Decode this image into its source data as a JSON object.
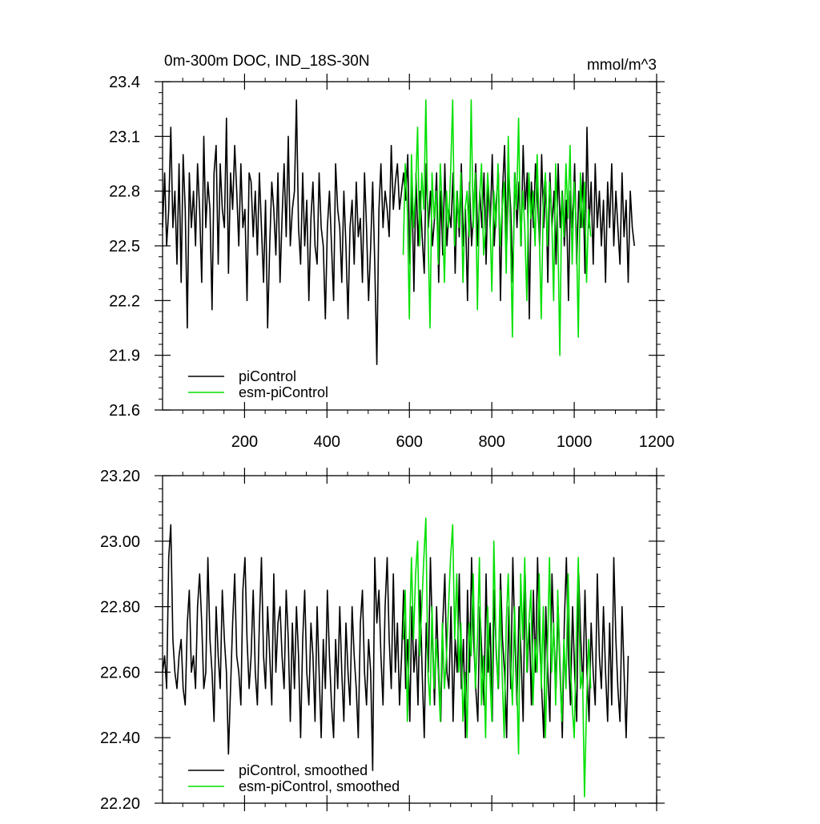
{
  "figure": {
    "title_left": "0m-300m DOC, IND_18S-30N",
    "title_right": "mmol/m^3"
  },
  "chart_data": [
    {
      "type": "line",
      "title": "0m-300m DOC, IND_18S-30N",
      "units": "mmol/m^3",
      "xlim": [
        1,
        1200
      ],
      "ylim": [
        21.6,
        23.4
      ],
      "x_ticks": [
        200,
        400,
        600,
        800,
        1000,
        1200
      ],
      "x_tick_labels": [
        "200",
        "400",
        "600",
        "800",
        "1000",
        "1200"
      ],
      "y_ticks": [
        21.6,
        21.9,
        22.2,
        22.5,
        22.8,
        23.1,
        23.4
      ],
      "y_tick_labels": [
        "21.6",
        "21.9",
        "22.2",
        "22.5",
        "22.8",
        "23.1",
        "23.4"
      ],
      "legend_position": "bottom-left",
      "series": [
        {
          "name": "piControl",
          "color": "#000000",
          "x_start": 1,
          "x_step": 5,
          "values": [
            22.6,
            22.9,
            22.5,
            22.7,
            23.15,
            22.6,
            22.8,
            22.4,
            22.95,
            22.3,
            23.0,
            22.7,
            22.05,
            22.9,
            22.6,
            22.8,
            22.5,
            22.95,
            22.7,
            22.3,
            23.1,
            22.6,
            22.85,
            22.7,
            22.15,
            22.9,
            23.05,
            22.4,
            22.95,
            22.7,
            22.6,
            23.2,
            22.35,
            22.9,
            22.7,
            23.05,
            22.8,
            22.5,
            22.95,
            22.6,
            22.7,
            22.2,
            22.9,
            22.85,
            22.55,
            22.8,
            22.45,
            22.9,
            22.6,
            22.3,
            22.75,
            22.05,
            22.5,
            22.85,
            22.7,
            22.45,
            22.9,
            22.3,
            22.65,
            22.95,
            22.55,
            23.1,
            22.5,
            22.7,
            22.8,
            23.3,
            22.6,
            22.4,
            22.9,
            22.5,
            22.75,
            22.2,
            22.65,
            22.85,
            22.5,
            22.4,
            22.9,
            22.6,
            22.5,
            22.1,
            22.6,
            22.8,
            22.5,
            22.2,
            22.95,
            22.7,
            22.6,
            22.3,
            22.8,
            22.5,
            22.1,
            22.6,
            22.75,
            22.4,
            22.85,
            22.55,
            22.65,
            22.3,
            22.9,
            22.6,
            22.2,
            22.5,
            22.85,
            22.4,
            21.85,
            22.7,
            22.95,
            22.6,
            22.8,
            22.7,
            22.55,
            23.05,
            22.7,
            22.85,
            22.95,
            22.7,
            22.8,
            22.9,
            22.75,
            23.0,
            22.4,
            22.85,
            22.25,
            22.9,
            22.5,
            22.8,
            22.55,
            22.35,
            22.95,
            22.6,
            22.8,
            22.5,
            22.65,
            22.9,
            22.3,
            22.8,
            22.45,
            22.95,
            22.5,
            22.7,
            22.6,
            22.9,
            22.35,
            22.8,
            22.55,
            22.95,
            22.5,
            22.7,
            22.2,
            22.85,
            22.5,
            22.7,
            22.95,
            22.5,
            22.8,
            22.6,
            22.9,
            22.4,
            22.85,
            22.6,
            23.0,
            22.5,
            22.75,
            22.9,
            22.2,
            22.8,
            23.05,
            22.5,
            22.9,
            22.7,
            22.3,
            22.9,
            22.6,
            22.85,
            22.5,
            23.05,
            22.7,
            22.9,
            22.1,
            22.85,
            22.6,
            22.95,
            22.75,
            22.5,
            23.0,
            22.6,
            22.85,
            22.3,
            22.9,
            22.6,
            22.8,
            22.4,
            22.95,
            22.6,
            22.8,
            22.5,
            22.75,
            22.2,
            22.8,
            22.6,
            22.95,
            22.4,
            22.8,
            22.6,
            22.9,
            22.35,
            23.15,
            22.6,
            22.85,
            22.4,
            22.95,
            22.6,
            22.8,
            22.5,
            22.75,
            22.3,
            22.85,
            22.6,
            22.95,
            22.5,
            22.8,
            22.6,
            22.4,
            22.9,
            22.55,
            22.75,
            22.3,
            22.8,
            22.6,
            22.5
          ]
        },
        {
          "name": "esm-piControl",
          "color": "#00e000",
          "x_start": 585,
          "x_step": 5,
          "values": [
            22.45,
            22.95,
            22.7,
            22.1,
            23.0,
            22.6,
            22.8,
            23.15,
            22.5,
            22.9,
            22.7,
            23.3,
            22.6,
            22.05,
            22.9,
            22.65,
            22.8,
            22.4,
            22.95,
            22.7,
            22.3,
            22.8,
            22.6,
            22.9,
            23.3,
            22.5,
            22.8,
            22.6,
            22.9,
            22.3,
            22.7,
            22.8,
            22.55,
            23.3,
            22.6,
            22.9,
            22.15,
            22.75,
            22.95,
            22.45,
            22.6,
            22.9,
            22.7,
            22.25,
            22.8,
            22.6,
            22.95,
            22.5,
            22.7,
            22.85,
            22.35,
            23.1,
            22.6,
            22.0,
            22.9,
            22.7,
            23.2,
            22.5,
            22.8,
            22.6,
            22.2,
            22.9,
            22.65,
            22.8,
            22.5,
            23.0,
            22.6,
            22.1,
            22.75,
            22.9,
            22.5,
            22.85,
            22.7,
            22.2,
            22.95,
            22.6,
            21.9,
            22.8,
            22.55,
            22.95,
            22.65,
            23.05,
            22.4,
            22.85,
            22.6,
            22.0,
            22.9,
            22.6,
            22.85,
            22.3,
            22.7,
            22.55
          ]
        }
      ]
    },
    {
      "type": "line",
      "xlim": [
        1,
        1200
      ],
      "ylim": [
        22.2,
        23.2
      ],
      "y_ticks": [
        22.2,
        22.4,
        22.6,
        22.8,
        23.0,
        23.2
      ],
      "y_tick_labels": [
        "22.20",
        "22.40",
        "22.60",
        "22.80",
        "23.00",
        "23.20"
      ],
      "x_ticks": [
        200,
        400,
        600,
        800,
        1000,
        1200
      ],
      "legend_position": "bottom-left",
      "series": [
        {
          "name": "piControl, smoothed",
          "color": "#000000",
          "x_start": 1,
          "x_step": 5,
          "values": [
            22.6,
            22.65,
            22.55,
            22.95,
            23.05,
            22.7,
            22.6,
            22.55,
            22.65,
            22.7,
            22.55,
            22.5,
            22.75,
            22.85,
            22.6,
            22.65,
            22.55,
            22.8,
            22.9,
            22.75,
            22.55,
            22.6,
            22.95,
            22.7,
            22.6,
            22.45,
            22.8,
            22.65,
            22.55,
            22.85,
            22.7,
            22.6,
            22.35,
            22.55,
            22.75,
            22.9,
            22.65,
            22.6,
            22.5,
            22.85,
            22.95,
            22.7,
            22.55,
            22.65,
            22.85,
            22.6,
            22.5,
            22.75,
            22.95,
            22.65,
            22.55,
            22.8,
            22.65,
            22.5,
            22.9,
            22.6,
            22.75,
            22.8,
            22.65,
            22.55,
            22.85,
            22.7,
            22.45,
            22.75,
            22.55,
            22.8,
            22.65,
            22.4,
            22.7,
            22.85,
            22.6,
            22.5,
            22.75,
            22.65,
            22.45,
            22.8,
            22.6,
            22.4,
            22.7,
            22.55,
            22.85,
            22.65,
            22.5,
            22.4,
            22.7,
            22.55,
            22.8,
            22.6,
            22.45,
            22.75,
            22.6,
            22.5,
            22.8,
            22.65,
            22.55,
            22.4,
            22.75,
            22.85,
            22.6,
            22.5,
            22.7,
            22.6,
            22.3,
            22.95,
            22.75,
            22.85,
            22.65,
            22.5,
            22.8,
            22.95,
            22.7,
            22.55,
            22.9,
            22.6,
            22.75,
            22.5,
            22.65,
            22.85,
            22.55,
            22.7,
            22.45,
            22.8,
            22.6,
            22.7,
            22.5,
            22.85,
            22.6,
            22.4,
            22.75,
            22.6,
            22.95,
            22.7,
            22.5,
            22.8,
            22.6,
            22.45,
            22.75,
            22.9,
            22.6,
            22.55,
            22.8,
            22.45,
            22.7,
            22.6,
            22.9,
            22.55,
            22.7,
            22.4,
            22.85,
            22.6,
            22.95,
            22.7,
            22.55,
            22.45,
            22.8,
            22.65,
            22.5,
            22.9,
            22.6,
            22.75,
            22.45,
            22.85,
            22.65,
            22.55,
            22.9,
            22.7,
            22.6,
            22.4,
            22.8,
            22.55,
            22.95,
            22.7,
            22.5,
            22.8,
            22.65,
            22.45,
            22.9,
            22.6,
            22.75,
            22.5,
            22.85,
            22.6,
            22.95,
            22.7,
            22.55,
            22.4,
            22.8,
            22.6,
            22.45,
            22.9,
            22.7,
            22.55,
            22.8,
            22.6,
            22.4,
            22.75,
            22.95,
            22.65,
            22.5,
            22.8,
            22.6,
            22.45,
            22.9,
            22.7,
            22.55,
            22.85,
            22.6,
            22.45,
            22.75,
            22.6,
            22.5,
            22.9,
            22.65,
            22.55,
            22.8,
            22.6,
            22.45,
            22.75,
            22.5,
            22.95,
            22.7,
            22.55,
            22.45,
            22.8,
            22.6,
            22.4,
            22.65
          ]
        },
        {
          "name": "esm-piControl, smoothed",
          "color": "#00e000",
          "x_start": 585,
          "x_step": 5,
          "values": [
            22.7,
            22.85,
            22.45,
            22.7,
            22.95,
            22.7,
            22.9,
            23.0,
            22.65,
            22.8,
            22.95,
            23.07,
            22.6,
            22.5,
            22.8,
            22.55,
            22.7,
            22.6,
            22.45,
            22.75,
            22.55,
            22.65,
            22.8,
            22.95,
            23.05,
            22.7,
            22.9,
            22.6,
            22.75,
            22.45,
            22.6,
            22.4,
            22.75,
            22.65,
            22.9,
            22.55,
            22.7,
            22.95,
            22.5,
            22.65,
            22.4,
            22.8,
            22.6,
            22.45,
            23.0,
            22.7,
            22.55,
            22.85,
            22.6,
            22.4,
            22.75,
            22.9,
            22.65,
            22.5,
            22.8,
            22.6,
            22.35,
            22.9,
            22.7,
            22.95,
            22.6,
            22.75,
            22.85,
            22.5,
            22.7,
            22.6,
            22.9,
            22.55,
            22.8,
            22.4,
            22.65,
            22.95,
            22.6,
            22.75,
            22.5,
            22.85,
            22.6,
            22.45,
            22.7,
            22.55,
            22.9,
            22.65,
            22.5,
            22.4,
            22.7,
            22.95,
            22.55,
            22.6,
            22.22,
            22.5,
            22.7,
            22.55
          ]
        }
      ]
    }
  ]
}
